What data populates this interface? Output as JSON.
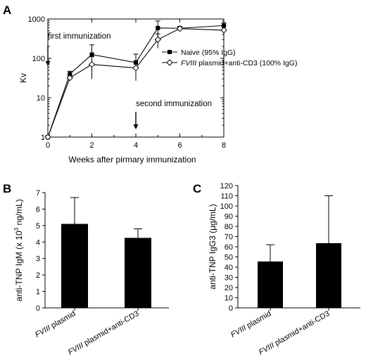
{
  "chart_data": [
    {
      "panel": "A",
      "type": "line",
      "ylabel": "Kv",
      "xlabel": "Weeks after pirmary immunization",
      "yscale": "log",
      "ylim": [
        1,
        1000
      ],
      "xlim": [
        0,
        8
      ],
      "x_ticks": [
        "0",
        "2",
        "4",
        "6",
        "8"
      ],
      "y_ticks": [
        "1",
        "10",
        "100",
        "1000"
      ],
      "legend_position": "top-right",
      "annotations": [
        {
          "text": "first immunization",
          "x": 0
        },
        {
          "text": "second immunization",
          "x": 4
        }
      ],
      "series": [
        {
          "name": "Naive (95% IgG)",
          "marker": "filled-square",
          "x": [
            0,
            1,
            2,
            4,
            5,
            6,
            8
          ],
          "y": [
            1,
            40,
            125,
            78,
            590,
            580,
            680
          ],
          "err": [
            0,
            7,
            95,
            50,
            300,
            70,
            120
          ]
        },
        {
          "name_italic": "FVIII",
          "name_rest": " plasmid+anti-CD3 (100% IgG)",
          "marker": "open-diamond",
          "x": [
            0,
            1,
            2,
            4,
            5,
            6,
            8
          ],
          "y": [
            1,
            32,
            70,
            57,
            300,
            570,
            520
          ],
          "err": [
            0,
            5,
            40,
            30,
            120,
            60,
            140
          ]
        }
      ]
    },
    {
      "panel": "B",
      "type": "bar",
      "ylabel_pre": "anti-TNP IgM (x 10",
      "ylabel_sup": "3",
      "ylabel_post": " ng/mL)",
      "ylim": [
        0,
        7
      ],
      "y_ticks": [
        "0",
        "1",
        "2",
        "3",
        "4",
        "5",
        "6",
        "7"
      ],
      "categories": [
        {
          "italic": "FVIII",
          "rest": " plasmid"
        },
        {
          "italic": "FVIII",
          "rest": " plasmid+anti-CD3"
        }
      ],
      "values": [
        5.1,
        4.25
      ],
      "err": [
        1.6,
        0.55
      ]
    },
    {
      "panel": "C",
      "type": "bar",
      "ylabel": "anti-TNP IgG3 (μg/mL)",
      "ylim": [
        0,
        120
      ],
      "y_ticks": [
        "0",
        "10",
        "20",
        "30",
        "40",
        "50",
        "60",
        "70",
        "80",
        "90",
        "100",
        "110",
        "120"
      ],
      "categories": [
        {
          "italic": "FVIII",
          "rest": " plasmid"
        },
        {
          "italic": "FVIII",
          "rest": " plasmid+anti-CD3"
        }
      ],
      "values": [
        45.5,
        63.5
      ],
      "err": [
        16.5,
        46.5
      ]
    }
  ]
}
